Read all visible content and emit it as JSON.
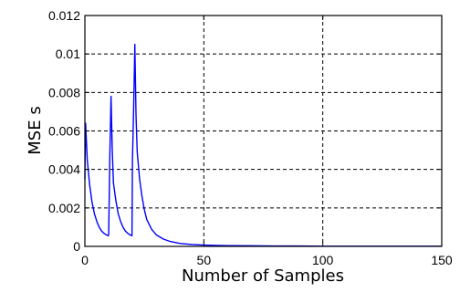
{
  "chart_data": {
    "type": "line",
    "title": "",
    "xlabel": "Number of Samples",
    "ylabel": "MSE s",
    "xlim": [
      0,
      150
    ],
    "ylim": [
      0,
      0.012
    ],
    "grid": true,
    "grid_style": "dashed",
    "legend": "none",
    "x_ticks": [
      0,
      50,
      100,
      150
    ],
    "x_tick_labels": [
      "0",
      "50",
      "100",
      "150"
    ],
    "y_ticks": [
      0,
      0.002,
      0.004,
      0.006,
      0.008,
      0.01,
      0.012
    ],
    "y_tick_labels": [
      "0",
      "0.002",
      "0.004",
      "0.006",
      "0.008",
      "0.01",
      "0.012"
    ],
    "line_color": "#0000ff",
    "series": [
      {
        "x": [
          0,
          0.3,
          1,
          2,
          3,
          4,
          5,
          6,
          7,
          8,
          9,
          9.8,
          10,
          10.5,
          11,
          11.5,
          12,
          13,
          14,
          15,
          16,
          17,
          18,
          19,
          19.8,
          20,
          20.5,
          21,
          21.5,
          22,
          23,
          24,
          25,
          26,
          28,
          30,
          33,
          36,
          40,
          45,
          50,
          55,
          60,
          70,
          80,
          90,
          100,
          110,
          120,
          130,
          140,
          150
        ],
        "y": [
          0.0035,
          0.0064,
          0.0045,
          0.0032,
          0.0023,
          0.0017,
          0.0013,
          0.001,
          0.0008,
          0.00068,
          0.0006,
          0.00055,
          0.0006,
          0.0048,
          0.0078,
          0.005,
          0.0033,
          0.0024,
          0.0017,
          0.0013,
          0.001,
          0.0008,
          0.00068,
          0.0006,
          0.00055,
          0.0045,
          0.0072,
          0.0105,
          0.0068,
          0.0049,
          0.0035,
          0.0026,
          0.0019,
          0.0014,
          0.0009,
          0.0006,
          0.00038,
          0.00025,
          0.00015,
          0.0001,
          7e-05,
          5e-05,
          4e-05,
          3e-05,
          2e-05,
          2e-05,
          1e-05,
          1e-05,
          1e-05,
          1e-05,
          1e-05,
          1e-05
        ]
      }
    ]
  }
}
